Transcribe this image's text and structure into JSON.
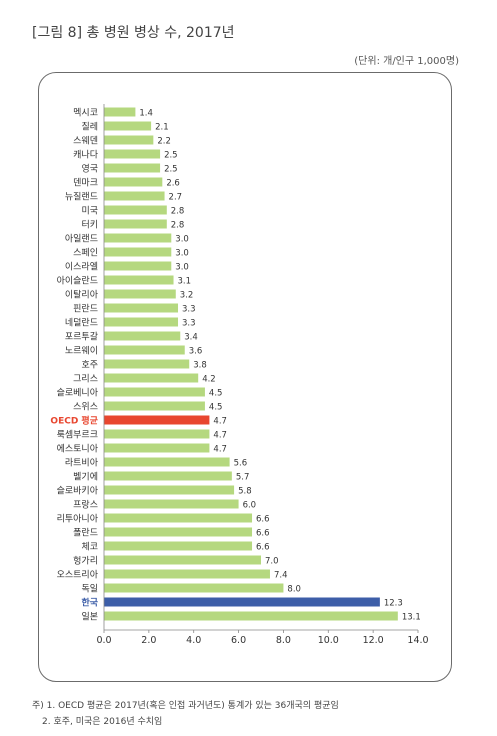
{
  "title": "[그림 8] 총 병원 병상 수, 2017년",
  "unit": "(단위: 개/인구 1,000명)",
  "notes": [
    "주) 1. OECD 평균은 2017년(혹은 인접 과거년도) 통계가 있는 36개국의 평균임",
    "2. 호주, 미국은 2016년 수치임"
  ],
  "colors": {
    "bar": "#b5d87f",
    "oecd": "#e8462f",
    "korea": "#3d5ea8",
    "label": "#333333"
  },
  "chart_data": {
    "type": "bar",
    "orientation": "horizontal",
    "categories": [
      "멕시코",
      "칠레",
      "스웨덴",
      "캐나다",
      "영국",
      "덴마크",
      "뉴질랜드",
      "미국",
      "터키",
      "아일랜드",
      "스페인",
      "이스라엘",
      "아이슬란드",
      "이탈리아",
      "핀란드",
      "네덜란드",
      "포르투갈",
      "노르웨이",
      "호주",
      "그리스",
      "슬로베니아",
      "스위스",
      "OECD 평균",
      "룩셈부르크",
      "에스토니아",
      "라트비아",
      "벨기에",
      "슬로바키아",
      "프랑스",
      "리투아니아",
      "폴란드",
      "체코",
      "헝가리",
      "오스트리아",
      "독일",
      "한국",
      "일본"
    ],
    "values": [
      1.4,
      2.1,
      2.2,
      2.5,
      2.5,
      2.6,
      2.7,
      2.8,
      2.8,
      3.0,
      3.0,
      3.0,
      3.1,
      3.2,
      3.3,
      3.3,
      3.4,
      3.6,
      3.8,
      4.2,
      4.5,
      4.5,
      4.7,
      4.7,
      4.7,
      5.6,
      5.7,
      5.8,
      6.0,
      6.6,
      6.6,
      6.6,
      7.0,
      7.4,
      8.0,
      12.3,
      13.1
    ],
    "value_labels": [
      "1.4",
      "2.1",
      "2.2",
      "2.5",
      "2.5",
      "2.6",
      "2.7",
      "2.8",
      "2.8",
      "3.0",
      "3.0",
      "3.0",
      "3.1",
      "3.2",
      "3.3",
      "3.3",
      "3.4",
      "3.6",
      "3.8",
      "4.2",
      "4.5",
      "4.5",
      "4.7",
      "4.7",
      "4.7",
      "5.6",
      "5.7",
      "5.8",
      "6.0",
      "6.6",
      "6.6",
      "6.6",
      "7.0",
      "7.4",
      "8.0",
      "12.3",
      "13.1"
    ],
    "highlight": {
      "OECD 평균": "oecd",
      "한국": "korea"
    },
    "xlim": [
      0,
      14
    ],
    "xticks": [
      "0.0",
      "2.0",
      "4.0",
      "6.0",
      "8.0",
      "10.0",
      "12.0",
      "14.0"
    ],
    "grid": false,
    "legend": "none"
  }
}
